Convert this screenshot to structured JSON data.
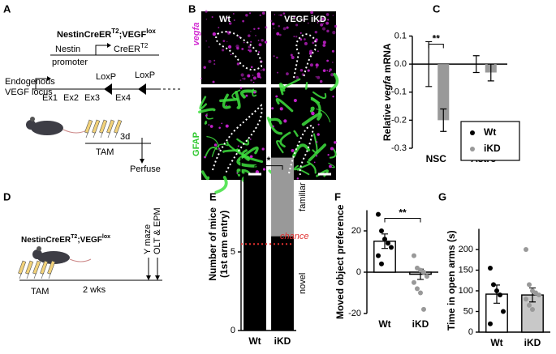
{
  "panel_labels": {
    "a": "A",
    "b": "B",
    "c": "C",
    "d": "D",
    "e": "E",
    "f": "F",
    "g": "G"
  },
  "schematic_a": {
    "genotype": {
      "part1": "NestinCreER",
      "sup1": "T2",
      "part2": ";VEGF",
      "sup2": "lox"
    },
    "promoter": [
      "Nestin",
      "promoter"
    ],
    "transgene": {
      "part1": "CreER",
      "sup1": "T2"
    },
    "locus": [
      "Endogenous",
      "VEGF locus"
    ],
    "exons": [
      "Ex1",
      "Ex2",
      "Ex3",
      "Ex4"
    ],
    "loxp": [
      "LoxP",
      "LoxP"
    ],
    "interval": "3d",
    "treatment": "TAM",
    "endpoint": "Perfuse"
  },
  "images_b": {
    "columns": [
      "Wt",
      "VEGF iKD"
    ],
    "rows": [
      "vegfa",
      "GFAP"
    ]
  },
  "schematic_d": {
    "genotype": {
      "part1": "NestinCreER",
      "sup1": "T2",
      "part2": ";VEGF",
      "sup2": "lox"
    },
    "treatment": "TAM",
    "interval": "2 wks",
    "tests": [
      "Y maze",
      "OLT & EPM"
    ]
  },
  "chart_data": [
    {
      "type": "bar",
      "categories": [
        "NSC",
        "Astro"
      ],
      "ylabel": [
        "Relative ",
        "vegfa",
        " mRNA"
      ],
      "ylim": [
        -0.3,
        0.1
      ],
      "yticks": [
        -0.3,
        -0.2,
        -0.1,
        {
          "value": 0,
          "label": "0.0"
        },
        0.1
      ],
      "series": [
        {
          "name": "Wt",
          "color": "#000000",
          "values": [
            0,
            0
          ],
          "errors": [
            0.08,
            0.03
          ]
        },
        {
          "name": "iKD",
          "color": "#999999",
          "values": [
            -0.2,
            -0.03
          ],
          "errors": [
            0.04,
            0.03
          ]
        }
      ],
      "significance": "**",
      "legend": "lower right"
    },
    {
      "type": "stacked_bar",
      "categories": [
        "Wt",
        "iKD"
      ],
      "ylabel": [
        "Number of mice",
        "(1st arm entry)"
      ],
      "ylim": [
        0,
        11
      ],
      "yticks": [
        0,
        5,
        10
      ],
      "series": [
        {
          "name": "novel",
          "color": "#000000",
          "values": [
            10,
            6
          ]
        },
        {
          "name": "familiar",
          "color": "#999999",
          "values": [
            0,
            5
          ]
        }
      ],
      "reference_line": {
        "value": 5.5,
        "label": "chance",
        "color": "#e0302f"
      },
      "significance": "*"
    },
    {
      "type": "bar",
      "categories": [
        "Wt",
        "iKD"
      ],
      "ylabel": "Moved object preference",
      "ylim": [
        -20,
        30
      ],
      "yticks": [
        -20,
        0,
        20
      ],
      "values": [
        15,
        -1
      ],
      "errors": [
        3.5,
        2.5
      ],
      "colors": [
        "#ffffff",
        "#c8c8c8"
      ],
      "points": [
        [
          28,
          20,
          16,
          14,
          12,
          8,
          4
        ],
        [
          8,
          2,
          1,
          0,
          -2,
          -5,
          -8,
          -10,
          -18
        ]
      ],
      "significance": "**"
    },
    {
      "type": "bar",
      "categories": [
        "Wt",
        "iKD"
      ],
      "ylabel": "Time in open arms (s)",
      "ylim": [
        0,
        250
      ],
      "yticks": [
        0,
        50,
        100,
        150,
        200
      ],
      "values": [
        92,
        90
      ],
      "errors": [
        22,
        17
      ],
      "colors": [
        "#ffffff",
        "#c8c8c8"
      ],
      "points": [
        [
          155,
          115,
          100,
          90,
          50,
          20
        ],
        [
          200,
          115,
          100,
          95,
          90,
          80,
          65,
          55
        ]
      ]
    }
  ]
}
